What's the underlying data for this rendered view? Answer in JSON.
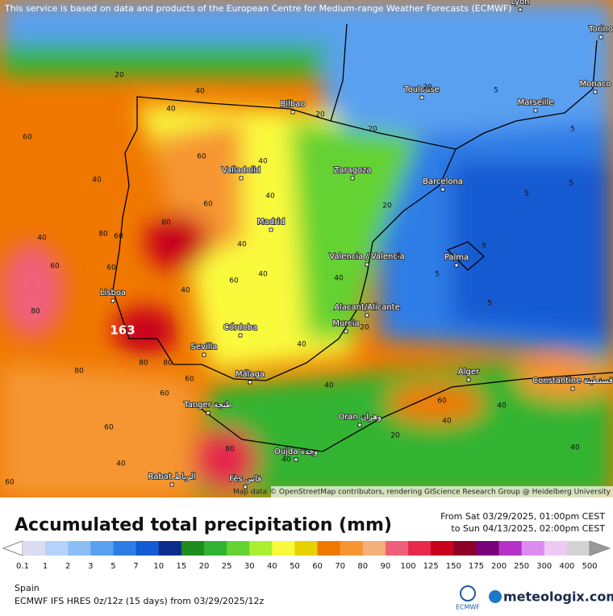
{
  "header": {
    "notice": "This service is based on data and products of the European Centre for Medium-range Weather Forecasts (ECMWF)"
  },
  "map": {
    "cities": [
      "Lyon",
      "Torino",
      "Monaco",
      "Toulouse",
      "Marseille",
      "Bilbao",
      "Zaragoza",
      "Barcelona",
      "Valladolid",
      "Madrid",
      "Valencia / Valencia",
      "Palma",
      "Lisboa",
      "Alacant/Alicante",
      "Murcia",
      "Córdoba",
      "Sevilla",
      "Alger",
      "Constantine قسنطينة",
      "Málaga",
      "Tanger طنجة",
      "Oran وهران",
      "Oujda وجدة",
      "Rabat الرباط",
      "Fès فاس"
    ],
    "contour_labels": [
      20,
      40,
      60,
      40,
      40,
      60,
      80,
      80,
      60,
      40,
      60,
      40,
      60,
      60,
      60,
      40,
      40,
      20,
      20,
      20,
      40,
      40,
      40,
      20,
      20,
      5,
      5,
      5,
      5,
      5,
      5,
      5,
      5,
      60,
      40,
      40,
      40,
      20,
      40,
      80,
      80,
      80,
      80,
      60,
      60,
      60,
      80,
      60,
      40,
      40,
      40
    ],
    "max_label": "163",
    "attribution": "Map data © OpenStreetMap contributors, rendering GIScience Research Group @ Heidelberg University"
  },
  "legend": {
    "title": "Accumulated total precipitation (mm)",
    "from": "From Sat 03/29/2025, 01:00pm CEST",
    "to": "to Sun 04/13/2025, 02:00pm CEST",
    "levels": [
      0.1,
      1,
      2,
      3,
      5,
      7,
      10,
      15,
      20,
      25,
      30,
      40,
      50,
      60,
      70,
      80,
      90,
      100,
      125,
      150,
      175,
      200,
      250,
      300,
      400,
      500
    ],
    "colors": [
      "#dcdcf0",
      "#b4d2fa",
      "#8cbef5",
      "#5aa0f0",
      "#2d7de6",
      "#145ad2",
      "#0a2d8c",
      "#1e8c1e",
      "#32b432",
      "#64d232",
      "#aaf032",
      "#fafa3c",
      "#e6d200",
      "#f07800",
      "#f59632",
      "#f5af78",
      "#f0607a",
      "#e6284b",
      "#c8001e",
      "#8c0028",
      "#780078",
      "#b432c8",
      "#dc8cf0",
      "#f0c8f5",
      "#d2d2d2"
    ]
  },
  "footer": {
    "region": "Spain",
    "model": "ECMWF IFS HRES 0z/12z (15 days) from  03/29/2025/12z",
    "ecmwf_logo": "ECMWF",
    "brand": "meteologix.com"
  }
}
